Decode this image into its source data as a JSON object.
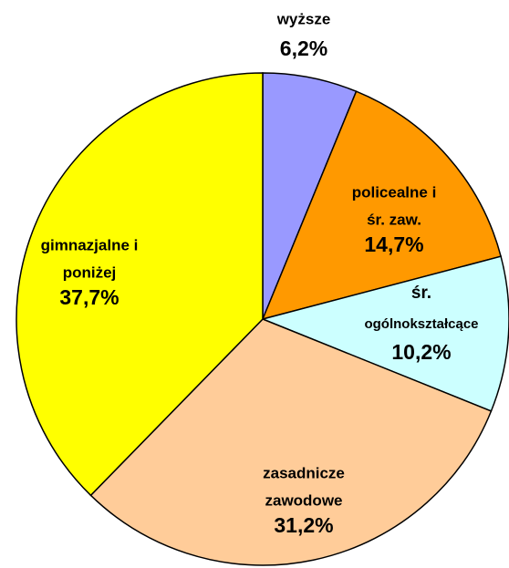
{
  "chart_data": {
    "type": "pie",
    "categories": [
      [
        "wyższe"
      ],
      [
        "policealne i",
        "śr. zaw."
      ],
      [
        "śr.",
        "ogólnokształcące"
      ],
      [
        "zasadnicze",
        "zawodowe"
      ],
      [
        "gimnazjalne i",
        "poniżej"
      ]
    ],
    "values": [
      6.2,
      14.7,
      10.2,
      31.2,
      37.7
    ],
    "value_labels": [
      "6,2%",
      "14,7%",
      "10,2%",
      "31,2%",
      "37,7%"
    ],
    "colors": [
      "#9999ff",
      "#ff9900",
      "#ccffff",
      "#ffcc99",
      "#ffff00"
    ]
  }
}
